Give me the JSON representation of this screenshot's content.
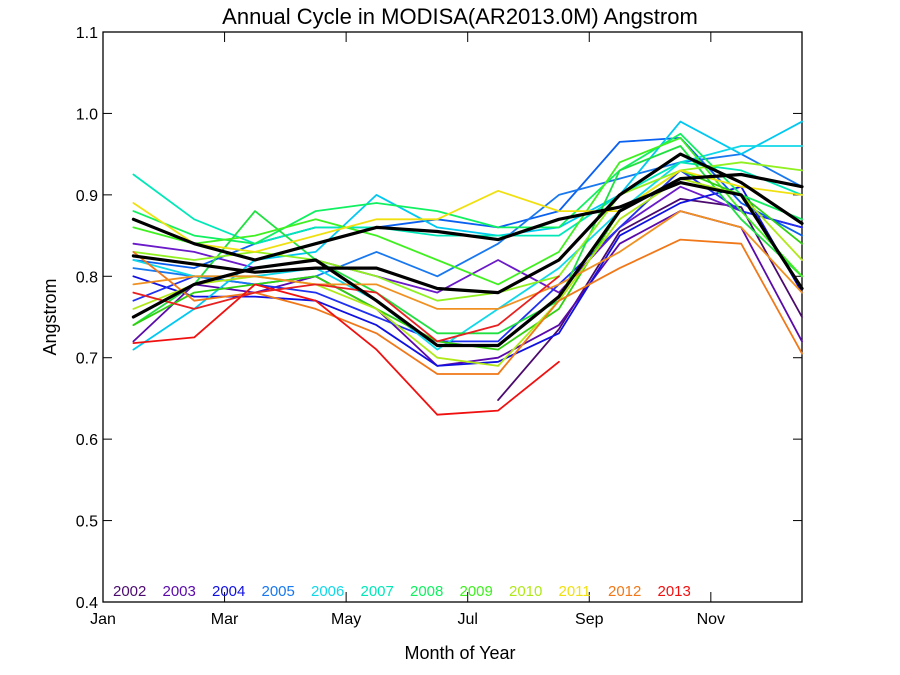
{
  "chart_data": {
    "type": "line",
    "title": "Annual Cycle in MODISA(AR2013.0M) Angstrom",
    "xlabel": "Month of Year",
    "ylabel": "Angstrom",
    "xlim": [
      1,
      12.5
    ],
    "ylim": [
      0.4,
      1.1
    ],
    "xticks": [
      {
        "label": "Jan",
        "value": 1
      },
      {
        "label": "Mar",
        "value": 3
      },
      {
        "label": "May",
        "value": 5
      },
      {
        "label": "Jul",
        "value": 7
      },
      {
        "label": "Sep",
        "value": 9
      },
      {
        "label": "Nov",
        "value": 11
      }
    ],
    "yticks": [
      0.4,
      0.5,
      0.6,
      0.7,
      0.8,
      0.9,
      1.0,
      1.1
    ],
    "grid": false,
    "legend_position": "bottom-left",
    "x": [
      1.5,
      2.5,
      3.5,
      4.5,
      5.5,
      6.5,
      7.5,
      8.5,
      9.5,
      10.5,
      11.5,
      12.5
    ],
    "series": [
      {
        "name": "2002",
        "color": "#4B0A6E",
        "values": [
          null,
          null,
          null,
          null,
          null,
          null,
          0.648,
          0.735,
          0.855,
          0.895,
          0.885,
          0.75
        ]
      },
      {
        "name": "2003",
        "color": "#5A0AAA",
        "values": [
          0.72,
          0.79,
          0.78,
          0.8,
          0.76,
          0.69,
          0.7,
          0.74,
          0.84,
          0.88,
          0.86,
          0.72
        ]
      },
      {
        "name": "2003",
        "color": "#6A1AC8",
        "values": [
          0.84,
          0.83,
          0.81,
          0.82,
          0.8,
          0.78,
          0.82,
          0.78,
          0.86,
          0.91,
          0.88,
          0.86
        ]
      },
      {
        "name": "2004",
        "color": "#1010E0",
        "values": [
          0.8,
          0.775,
          0.775,
          0.77,
          0.74,
          0.69,
          0.695,
          0.73,
          0.85,
          0.89,
          0.91,
          0.78
        ]
      },
      {
        "name": "2004",
        "color": "#2030F0",
        "values": [
          0.77,
          0.8,
          0.79,
          0.78,
          0.75,
          0.72,
          0.72,
          0.79,
          0.86,
          0.93,
          0.88,
          0.86
        ]
      },
      {
        "name": "2005",
        "color": "#0A60F0",
        "values": [
          0.82,
          0.81,
          0.84,
          0.86,
          0.86,
          0.87,
          0.86,
          0.88,
          0.965,
          0.97,
          0.89,
          0.85
        ]
      },
      {
        "name": "2005",
        "color": "#1878F0",
        "values": [
          0.81,
          0.8,
          0.79,
          0.8,
          0.83,
          0.8,
          0.84,
          0.9,
          0.92,
          0.94,
          0.95,
          0.91
        ]
      },
      {
        "name": "2006",
        "color": "#00C8F0",
        "values": [
          0.71,
          0.76,
          0.82,
          0.83,
          0.9,
          0.86,
          0.85,
          0.86,
          0.9,
          0.99,
          0.95,
          0.99
        ]
      },
      {
        "name": "2006",
        "color": "#10D8E8",
        "values": [
          0.82,
          0.8,
          0.8,
          0.81,
          0.77,
          0.71,
          0.76,
          0.81,
          0.88,
          0.94,
          0.96,
          0.96
        ]
      },
      {
        "name": "2007",
        "color": "#00E8B8",
        "values": [
          0.925,
          0.87,
          0.84,
          0.86,
          0.86,
          0.85,
          0.85,
          0.85,
          0.9,
          0.94,
          0.93,
          0.9
        ]
      },
      {
        "name": "2008",
        "color": "#10F060",
        "values": [
          0.88,
          0.85,
          0.84,
          0.88,
          0.89,
          0.88,
          0.86,
          0.86,
          0.93,
          0.975,
          0.9,
          0.87
        ]
      },
      {
        "name": "2008",
        "color": "#20E040",
        "values": [
          0.74,
          0.79,
          0.88,
          0.82,
          0.78,
          0.73,
          0.73,
          0.77,
          0.93,
          0.96,
          0.87,
          0.8
        ]
      },
      {
        "name": "2009",
        "color": "#40F020",
        "values": [
          0.86,
          0.84,
          0.85,
          0.87,
          0.85,
          0.82,
          0.79,
          0.83,
          0.94,
          0.97,
          0.88,
          0.8
        ]
      },
      {
        "name": "2009",
        "color": "#30D010",
        "values": [
          0.74,
          0.78,
          0.79,
          0.8,
          0.76,
          0.72,
          0.71,
          0.76,
          0.88,
          0.93,
          0.9,
          0.84
        ]
      },
      {
        "name": "2010",
        "color": "#90F020",
        "values": [
          0.83,
          0.82,
          0.83,
          0.82,
          0.8,
          0.77,
          0.78,
          0.8,
          0.9,
          0.93,
          0.94,
          0.93
        ]
      },
      {
        "name": "2010",
        "color": "#B0E818",
        "values": [
          0.76,
          0.79,
          0.8,
          0.79,
          0.76,
          0.7,
          0.69,
          0.77,
          0.87,
          0.92,
          0.9,
          0.82
        ]
      },
      {
        "name": "2011",
        "color": "#F0E010",
        "values": [
          0.89,
          0.84,
          0.83,
          0.85,
          0.87,
          0.87,
          0.905,
          0.88,
          0.88,
          0.93,
          0.91,
          0.9
        ]
      },
      {
        "name": "2012",
        "color": "#F07818",
        "values": [
          0.83,
          0.77,
          0.78,
          0.76,
          0.73,
          0.68,
          0.68,
          0.77,
          0.81,
          0.845,
          0.84,
          0.705
        ]
      },
      {
        "name": "2012",
        "color": "#F09020",
        "values": [
          0.79,
          0.8,
          0.8,
          0.79,
          0.79,
          0.76,
          0.76,
          0.79,
          0.83,
          0.88,
          0.86,
          0.78
        ]
      },
      {
        "name": "2013",
        "color": "#F01010",
        "values": [
          0.718,
          0.725,
          0.79,
          0.77,
          0.71,
          0.63,
          0.635,
          0.695,
          null,
          null,
          null,
          null
        ]
      },
      {
        "name": "2013",
        "color": "#E82020",
        "values": [
          0.78,
          0.76,
          0.78,
          0.79,
          0.78,
          0.72,
          0.74,
          0.8,
          null,
          null,
          null,
          null
        ]
      },
      {
        "name": "",
        "color": "#000000",
        "width": 3.2,
        "values": [
          0.825,
          0.815,
          0.805,
          0.81,
          0.81,
          0.785,
          0.78,
          0.82,
          0.9,
          0.95,
          0.915,
          0.865
        ]
      },
      {
        "name": "",
        "color": "#000000",
        "width": 3.2,
        "values": [
          0.75,
          0.79,
          0.81,
          0.82,
          0.77,
          0.715,
          0.715,
          0.775,
          0.88,
          0.92,
          0.925,
          0.91
        ]
      },
      {
        "name": "",
        "color": "#000000",
        "width": 3.2,
        "values": [
          0.87,
          0.84,
          0.82,
          0.84,
          0.86,
          0.855,
          0.845,
          0.87,
          0.885,
          0.915,
          0.9,
          0.785
        ]
      }
    ],
    "legend_entries": [
      {
        "label": "2002",
        "color": "#4B0A6E"
      },
      {
        "label": "2003",
        "color": "#5A0AAA"
      },
      {
        "label": "2004",
        "color": "#1010E0"
      },
      {
        "label": "2005",
        "color": "#1878F0"
      },
      {
        "label": "2006",
        "color": "#10D8E8"
      },
      {
        "label": "2007",
        "color": "#00E8B8"
      },
      {
        "label": "2008",
        "color": "#10F060"
      },
      {
        "label": "2009",
        "color": "#40F020"
      },
      {
        "label": "2010",
        "color": "#B0E818"
      },
      {
        "label": "2011",
        "color": "#F0E010"
      },
      {
        "label": "2012",
        "color": "#F07818"
      },
      {
        "label": "2013",
        "color": "#F01010"
      }
    ]
  }
}
